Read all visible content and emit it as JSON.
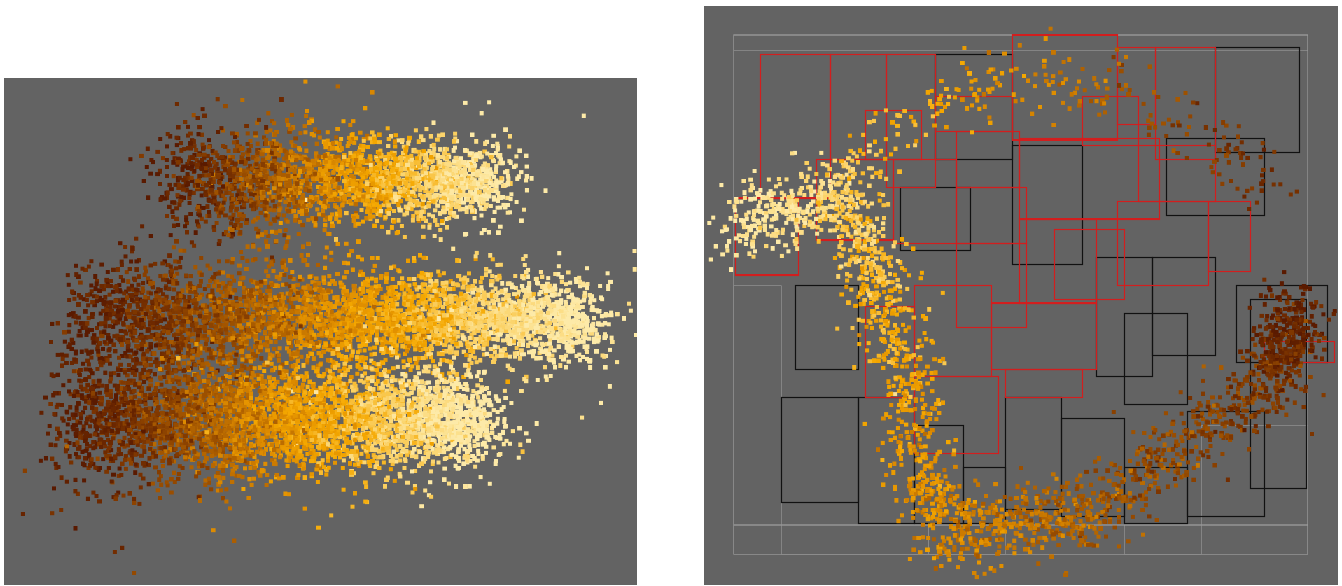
{
  "colors": {
    "background": "#636363",
    "partition_red": "#d21e1e",
    "partition_black": "#111111",
    "partition_grey": "#9a9a9a",
    "ramp": [
      "#5a1a00",
      "#7a3300",
      "#a85a00",
      "#dc8a00",
      "#f5a800",
      "#fbd36a",
      "#fdeaa8"
    ]
  },
  "chart_data": [
    {
      "type": "scatter",
      "title": "",
      "xlabel": "",
      "ylabel": "",
      "xlim": [
        0,
        100
      ],
      "ylim": [
        0,
        100
      ],
      "grid": false,
      "legend": "none",
      "description_of_clusters": [],
      "clusters": [
        {
          "x0": 26,
          "x1": 78,
          "yc": 80,
          "spread": 10,
          "n": 2600
        },
        {
          "x0": 12,
          "x1": 92,
          "yc": 53,
          "spread": 11,
          "n": 4200
        },
        {
          "x0": 10,
          "x1": 75,
          "yc": 33,
          "spread": 12,
          "n": 4200
        }
      ]
    },
    {
      "type": "scatter",
      "title": "",
      "xlabel": "",
      "ylabel": "",
      "xlim": [
        0,
        100
      ],
      "ylim": [
        0,
        100
      ],
      "grid": false,
      "legend": "none",
      "arc": {
        "start": [
          4,
          62
        ],
        "via": [
          [
            22,
            68
          ],
          [
            30,
            44
          ],
          [
            36,
            10
          ],
          [
            60,
            12
          ],
          [
            90,
            36
          ],
          [
            93,
            48
          ]
        ]
      },
      "point_count": 2200
    }
  ]
}
